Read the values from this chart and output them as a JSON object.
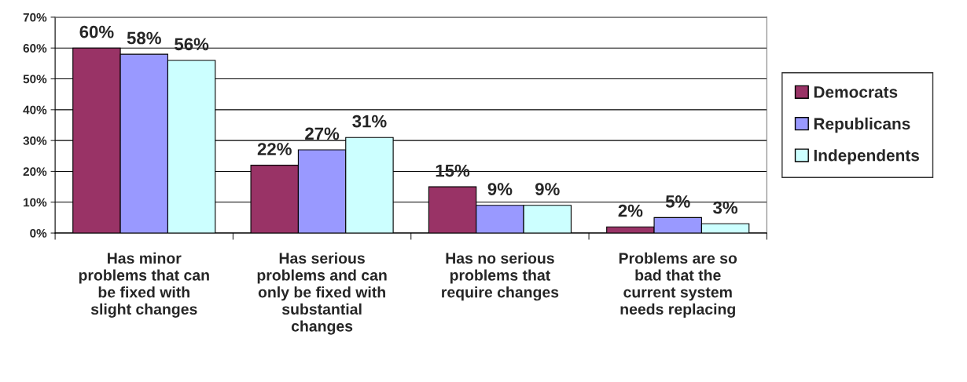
{
  "chart_data": {
    "type": "bar",
    "categories": [
      "Has minor problems that can be fixed with slight changes",
      "Has serious problems and can only be fixed with substantial changes",
      "Has no serious problems that require changes",
      "Problems are so bad that the current system needs replacing"
    ],
    "series": [
      {
        "name": "Democrats",
        "color": "#993366",
        "values": [
          60,
          22,
          15,
          2
        ],
        "value_labels": [
          "60%",
          "22%",
          "15%",
          "2%"
        ]
      },
      {
        "name": "Republicans",
        "color": "#9999ff",
        "values": [
          58,
          27,
          9,
          5
        ],
        "value_labels": [
          "58%",
          "27%",
          "9%",
          "5%"
        ]
      },
      {
        "name": "Independents",
        "color": "#ccffff",
        "values": [
          56,
          31,
          9,
          3
        ],
        "value_labels": [
          "56%",
          "31%",
          "9%",
          "3%"
        ]
      }
    ],
    "ylim": [
      0,
      70
    ],
    "yticks": [
      {
        "value": 0,
        "label": "0%"
      },
      {
        "value": 10,
        "label": "10%"
      },
      {
        "value": 20,
        "label": "20%"
      },
      {
        "value": 30,
        "label": "30%"
      },
      {
        "value": 40,
        "label": "40%"
      },
      {
        "value": 50,
        "label": "50%"
      },
      {
        "value": 60,
        "label": "60%"
      },
      {
        "value": 70,
        "label": "70%"
      }
    ],
    "grid": "y",
    "legend": "right"
  }
}
